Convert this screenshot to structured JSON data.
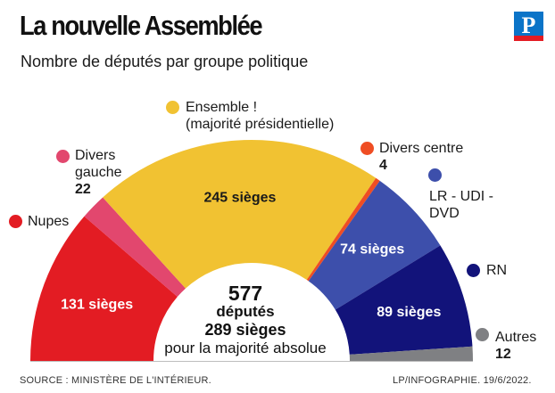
{
  "header": {
    "title": "La nouvelle Assemblée",
    "subtitle": "Nombre de députés par groupe politique",
    "logo_letter": "P"
  },
  "chart_data": {
    "type": "pie",
    "variant": "hemicycle",
    "title": "La nouvelle Assemblée",
    "subtitle": "Nombre de députés par groupe politique",
    "unit": "sièges",
    "total": 577,
    "majority": 289,
    "groups": [
      {
        "key": "nupes",
        "name": "Nupes",
        "seats": 131,
        "color": "#e31c23",
        "slice_label": "131 sièges"
      },
      {
        "key": "divers_gauche",
        "name": "Divers gauche",
        "seats": 22,
        "color": "#e2476e"
      },
      {
        "key": "ensemble",
        "name": "Ensemble ! (majorité présidentielle)",
        "seats": 245,
        "color": "#f1c232",
        "slice_label": "245 sièges"
      },
      {
        "key": "divers_centre",
        "name": "Divers centre",
        "seats": 4,
        "color": "#ef4d23"
      },
      {
        "key": "lr_udi_dvd",
        "name": "LR - UDI - DVD",
        "seats": 74,
        "color": "#3d4fab",
        "slice_label": "74 sièges"
      },
      {
        "key": "rn",
        "name": "RN",
        "seats": 89,
        "color": "#12137a",
        "slice_label": "89 sièges"
      },
      {
        "key": "autres",
        "name": "Autres",
        "seats": 12,
        "color": "#7f8083"
      }
    ]
  },
  "labels": {
    "nupes": {
      "name": "Nupes"
    },
    "divers_gauche": {
      "line1": "Divers",
      "line2": "gauche",
      "value": "22"
    },
    "ensemble": {
      "line1": "Ensemble !",
      "line2": "(majorité présidentielle)"
    },
    "divers_centre": {
      "name": "Divers centre",
      "value": "4"
    },
    "lr_udi_dvd": {
      "line1": "LR - UDI -",
      "line2": "DVD"
    },
    "rn": {
      "name": "RN"
    },
    "autres": {
      "name": "Autres",
      "value": "12"
    }
  },
  "center": {
    "total": "577",
    "total_label": "députés",
    "majority": "289 sièges",
    "majority_label": "pour la majorité absolue"
  },
  "footer": {
    "source": "SOURCE : MINISTÈRE DE L'INTÉRIEUR.",
    "credit": "LP/INFOGRAPHIE.  19/6/2022."
  }
}
